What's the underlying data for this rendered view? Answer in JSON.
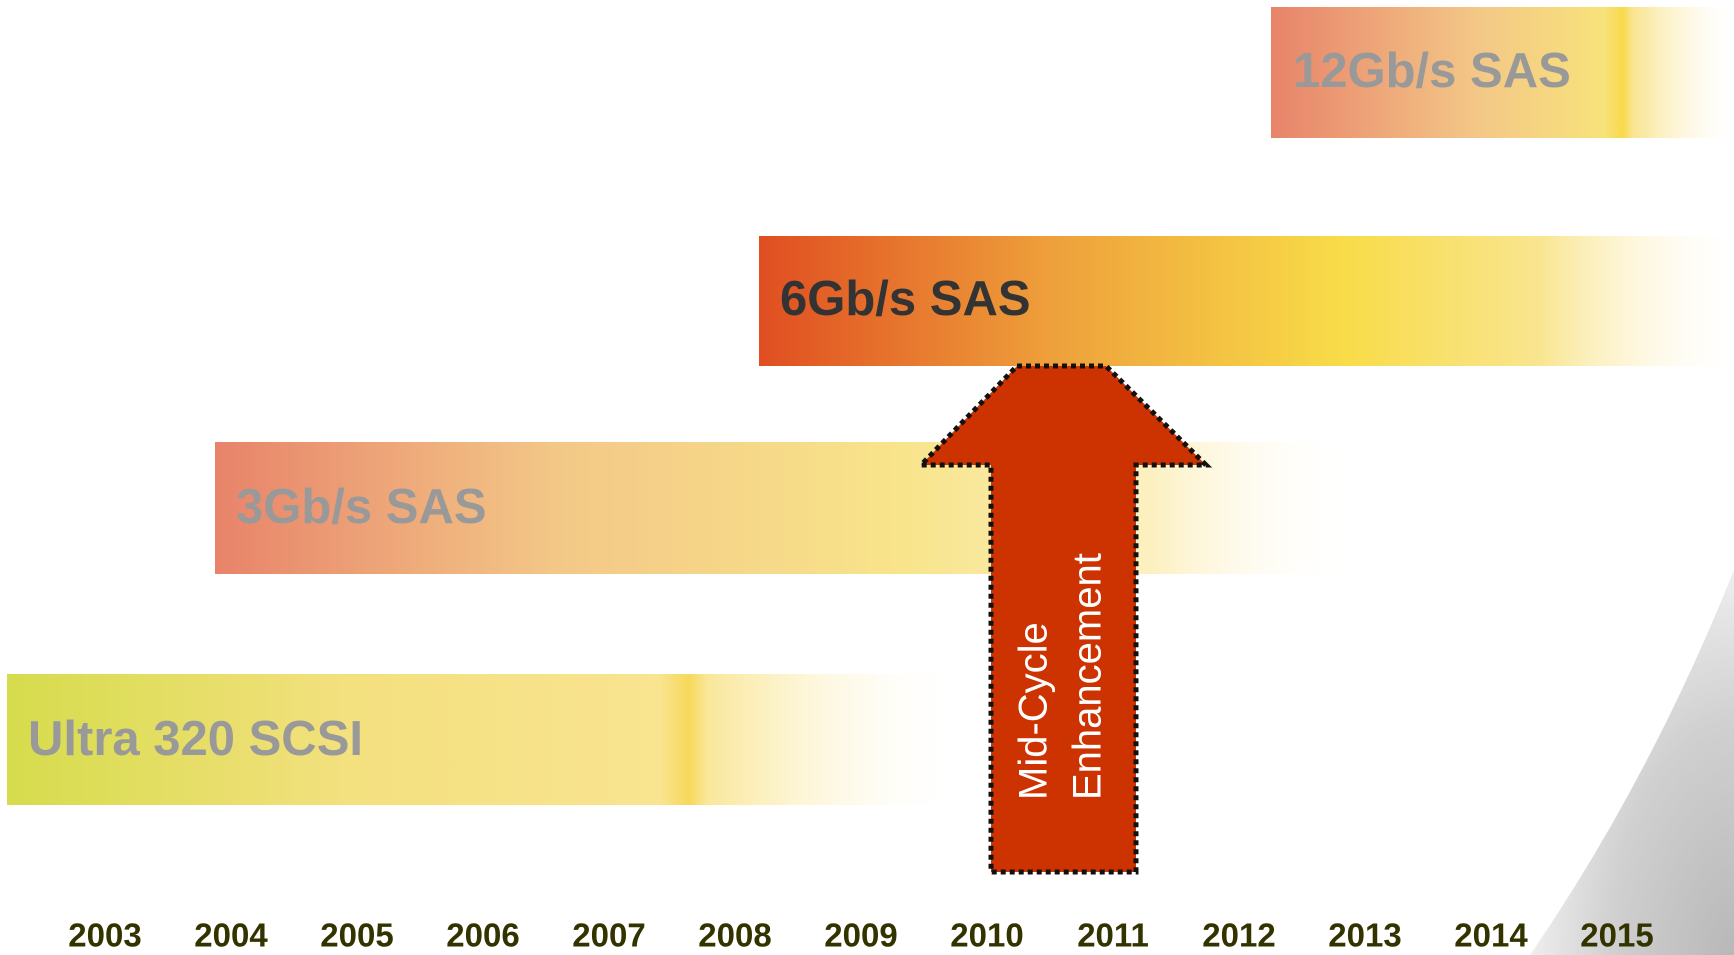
{
  "bars": [
    {
      "label": "12Gb/s SAS"
    },
    {
      "label": "6Gb/s SAS"
    },
    {
      "label": "3Gb/s SAS"
    },
    {
      "label": "Ultra 320 SCSI"
    }
  ],
  "arrow": {
    "label_lines": [
      "Mid-Cycle",
      "Enhancement"
    ]
  },
  "years": [
    "2003",
    "2004",
    "2005",
    "2006",
    "2007",
    "2008",
    "2009",
    "2010",
    "2011",
    "2012",
    "2013",
    "2014",
    "2015"
  ]
}
